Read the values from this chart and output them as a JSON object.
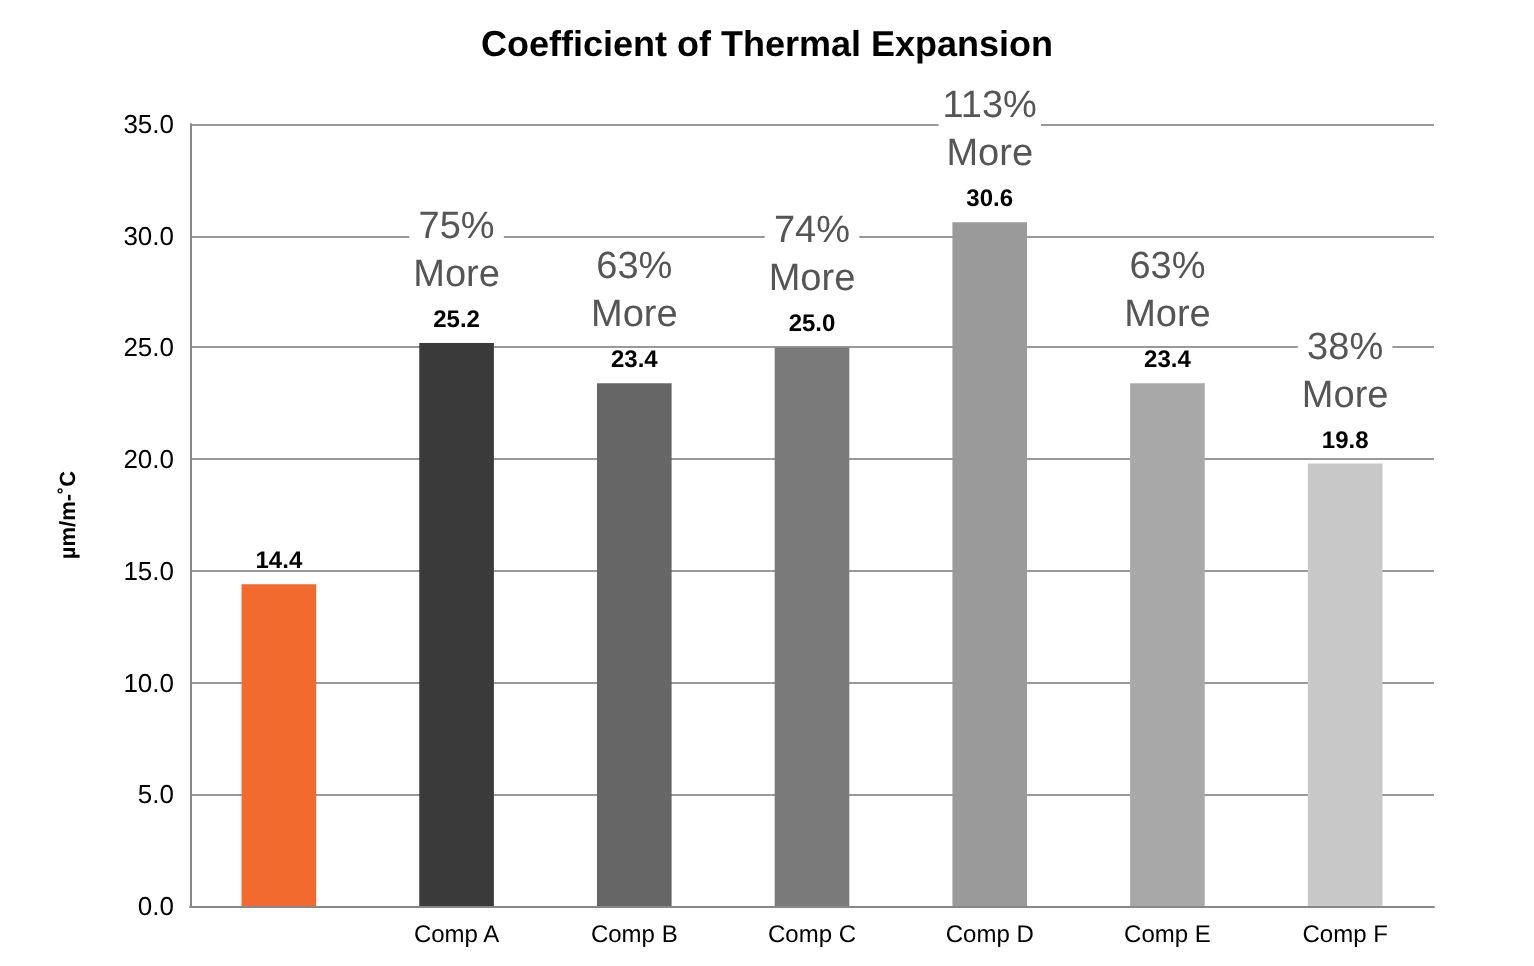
{
  "chart_data": {
    "type": "bar",
    "title": "Coefficient of Thermal Expansion",
    "ylabel": "µm/m-˚C",
    "categories": [
      null,
      "Comp A",
      "Comp B",
      "Comp C",
      "Comp D",
      "Comp E",
      "Comp F"
    ],
    "values": [
      14.4,
      25.2,
      23.4,
      25.0,
      30.6,
      23.4,
      19.8
    ],
    "colors": [
      "#f26a2e",
      "#3a3a3a",
      "#666666",
      "#7a7a7a",
      "#9a9a9a",
      "#a8a8a8",
      "#c8c8c8"
    ],
    "value_labels": [
      "14.4",
      "25.2",
      "23.4",
      "25.0",
      "30.6",
      "23.4",
      "19.8"
    ],
    "ylim": [
      0,
      35
    ],
    "yticks": [
      {
        "value": 0,
        "label": "0.0"
      },
      {
        "value": 5,
        "label": "5.0"
      },
      {
        "value": 10,
        "label": "10.0"
      },
      {
        "value": 15,
        "label": "15.0"
      },
      {
        "value": 20,
        "label": "20.0"
      },
      {
        "value": 25,
        "label": "25.0"
      },
      {
        "value": 30,
        "label": "30.0"
      },
      {
        "value": 35,
        "label": "35.0"
      }
    ],
    "grid": "y",
    "annotations": [
      {
        "text": "75%\nMore",
        "x": "Comp A",
        "y": 25.2
      },
      {
        "text": "63%\nMore",
        "x": "Comp B",
        "y": 23.4
      },
      {
        "text": "74%\nMore",
        "x": "Comp C",
        "y": 25.0
      },
      {
        "text": "113%\nMore",
        "x": "Comp D",
        "y": 30.6
      },
      {
        "text": "63%\nMore",
        "x": "Comp E",
        "y": 23.4
      },
      {
        "text": "38%\nMore",
        "x": "Comp F",
        "y": 19.8
      }
    ]
  }
}
